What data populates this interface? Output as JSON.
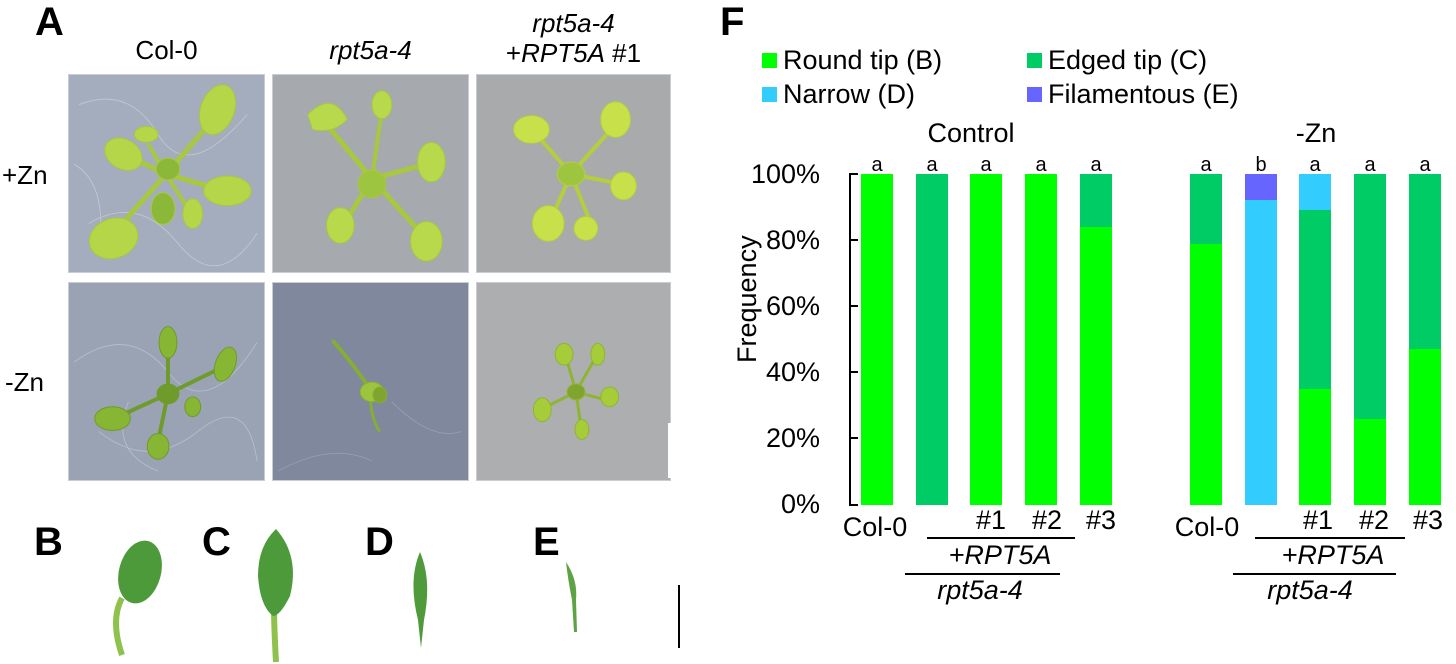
{
  "panels": {
    "A": {
      "letter": "A",
      "columns": [
        {
          "label": "Col-0",
          "italic": false
        },
        {
          "label": "rpt5a-4",
          "italic": true
        },
        {
          "label_line1": "rpt5a-4",
          "label_line2_prefix": "+",
          "label_line2_gene": "RPT5A",
          "label_line2_suffix": " #1"
        }
      ],
      "rows": [
        {
          "label": "+Zn"
        },
        {
          "label": "-Zn"
        }
      ]
    },
    "B": {
      "letter": "B"
    },
    "C": {
      "letter": "C"
    },
    "D": {
      "letter": "D"
    },
    "E": {
      "letter": "E"
    },
    "F": {
      "letter": "F"
    }
  },
  "colors": {
    "round": "#00ff00",
    "edged": "#00cc66",
    "narrow": "#33ccff",
    "filamentous": "#6666ff",
    "plant_light": "#b5d94a",
    "plant_dark": "#6b9f2a",
    "leaf": "#4f9a3a",
    "plate_blue": "#9aa3b4",
    "plate_grey": "#a8aaad"
  },
  "chart_data": {
    "type": "bar",
    "stacked": true,
    "title": "",
    "ylabel": "Frequency",
    "ylim": [
      0,
      100
    ],
    "yticks": [
      "0%",
      "20%",
      "40%",
      "60%",
      "80%",
      "100%"
    ],
    "legend": [
      {
        "name": "Round tip (B)",
        "key": "round"
      },
      {
        "name": "Edged tip (C)",
        "key": "edged"
      },
      {
        "name": "Narrow (D)",
        "key": "narrow"
      },
      {
        "name": "Filamentous (E)",
        "key": "filamentous"
      }
    ],
    "groups": [
      {
        "title": "Control",
        "categories": [
          "Col-0",
          "rpt5a-4",
          "#1",
          "#2",
          "#3"
        ],
        "x_labels": {
          "col0": "Col-0",
          "lines": [
            "#1",
            "#2",
            "#3"
          ],
          "transgene": "+RPT5A",
          "background": "rpt5a-4"
        },
        "significance": [
          "a",
          "a",
          "a",
          "a",
          "a"
        ],
        "series": [
          {
            "name": "Round tip (B)",
            "values": [
              100,
              0,
              100,
              100,
              84
            ]
          },
          {
            "name": "Edged tip (C)",
            "values": [
              0,
              100,
              0,
              0,
              16
            ]
          },
          {
            "name": "Narrow (D)",
            "values": [
              0,
              0,
              0,
              0,
              0
            ]
          },
          {
            "name": "Filamentous (E)",
            "values": [
              0,
              0,
              0,
              0,
              0
            ]
          }
        ]
      },
      {
        "title": "-Zn",
        "categories": [
          "Col-0",
          "rpt5a-4",
          "#1",
          "#2",
          "#3"
        ],
        "x_labels": {
          "col0": "Col-0",
          "lines": [
            "#1",
            "#2",
            "#3"
          ],
          "transgene": "+RPT5A",
          "background": "rpt5a-4"
        },
        "significance": [
          "a",
          "b",
          "a",
          "a",
          "a"
        ],
        "series": [
          {
            "name": "Round tip (B)",
            "values": [
              79,
              0,
              35,
              26,
              47
            ]
          },
          {
            "name": "Edged tip (C)",
            "values": [
              21,
              0,
              54,
              74,
              53
            ]
          },
          {
            "name": "Narrow (D)",
            "values": [
              0,
              92,
              11,
              0,
              0
            ]
          },
          {
            "name": "Filamentous (E)",
            "values": [
              0,
              8,
              0,
              0,
              0
            ]
          }
        ]
      }
    ]
  }
}
